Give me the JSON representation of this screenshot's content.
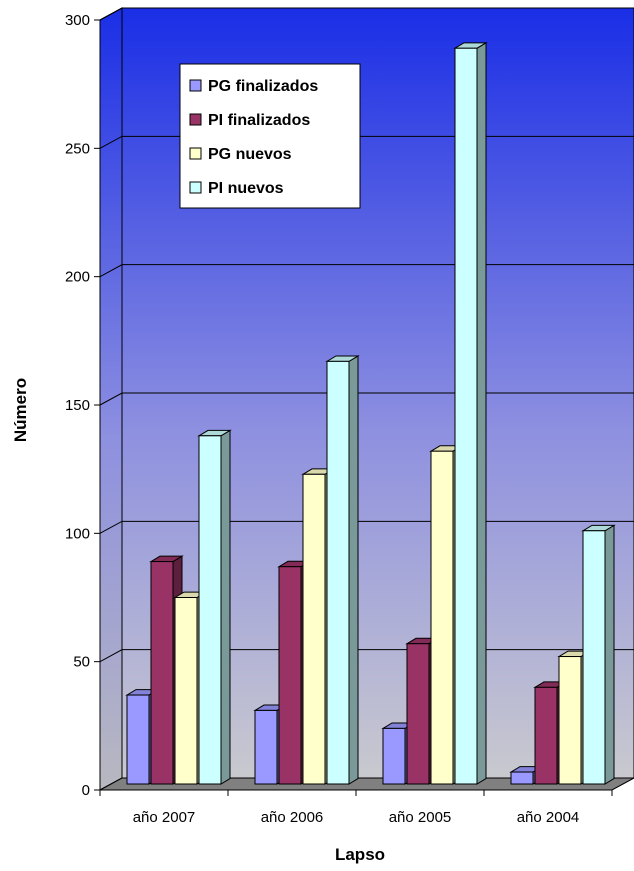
{
  "chart_data": {
    "type": "bar",
    "title": "",
    "xlabel": "Lapso",
    "ylabel": "Número",
    "categories": [
      "año 2007",
      "año 2006",
      "año 2005",
      "año 2004"
    ],
    "series": [
      {
        "name": "PG finalizados",
        "values": [
          37,
          31,
          24,
          7
        ],
        "color": "#9999ff"
      },
      {
        "name": "PI finalizados",
        "values": [
          89,
          87,
          57,
          40
        ],
        "color": "#993366"
      },
      {
        "name": "PG nuevos",
        "values": [
          75,
          123,
          132,
          52
        ],
        "color": "#ffffcc"
      },
      {
        "name": "PI nuevos",
        "values": [
          138,
          167,
          289,
          101
        ],
        "color": "#ccffff"
      }
    ],
    "ylim": [
      0,
      300
    ],
    "yticks": [
      0,
      50,
      100,
      150,
      200,
      250,
      300
    ],
    "grid": true,
    "legend_position": "top-left",
    "style": "3d-clustered-column",
    "plot_background": "gradient blue to gray"
  }
}
